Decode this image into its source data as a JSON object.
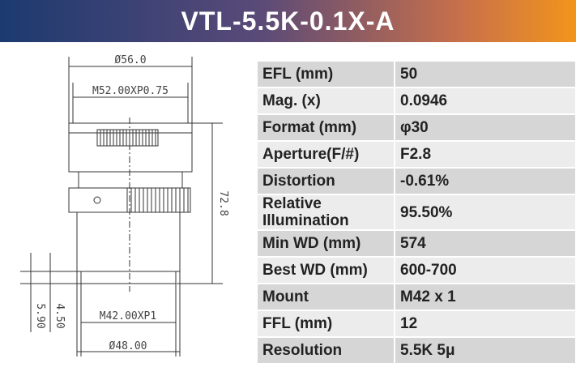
{
  "header": {
    "title": "VTL-5.5K-0.1X-A"
  },
  "drawing": {
    "labels": [
      "Ø56.0",
      "M52.00XP0.75",
      "72.8",
      "M42.00XP1",
      "Ø48.00",
      "5.90",
      "4.50"
    ]
  },
  "table": {
    "rows": [
      [
        "EFL (mm)",
        "50"
      ],
      [
        "Mag. (x)",
        "0.0946"
      ],
      [
        "Format (mm)",
        "φ30"
      ],
      [
        "Aperture(F/#)",
        "F2.8"
      ],
      [
        "Distortion",
        "-0.61%"
      ],
      [
        "Relative Illumination",
        "95.50%"
      ],
      [
        "Min WD (mm)",
        "574"
      ],
      [
        "Best WD (mm)",
        "600-700"
      ],
      [
        "Mount",
        "M42 x 1"
      ],
      [
        "FFL (mm)",
        "12"
      ],
      [
        "Resolution",
        "5.5K 5μ"
      ]
    ]
  }
}
